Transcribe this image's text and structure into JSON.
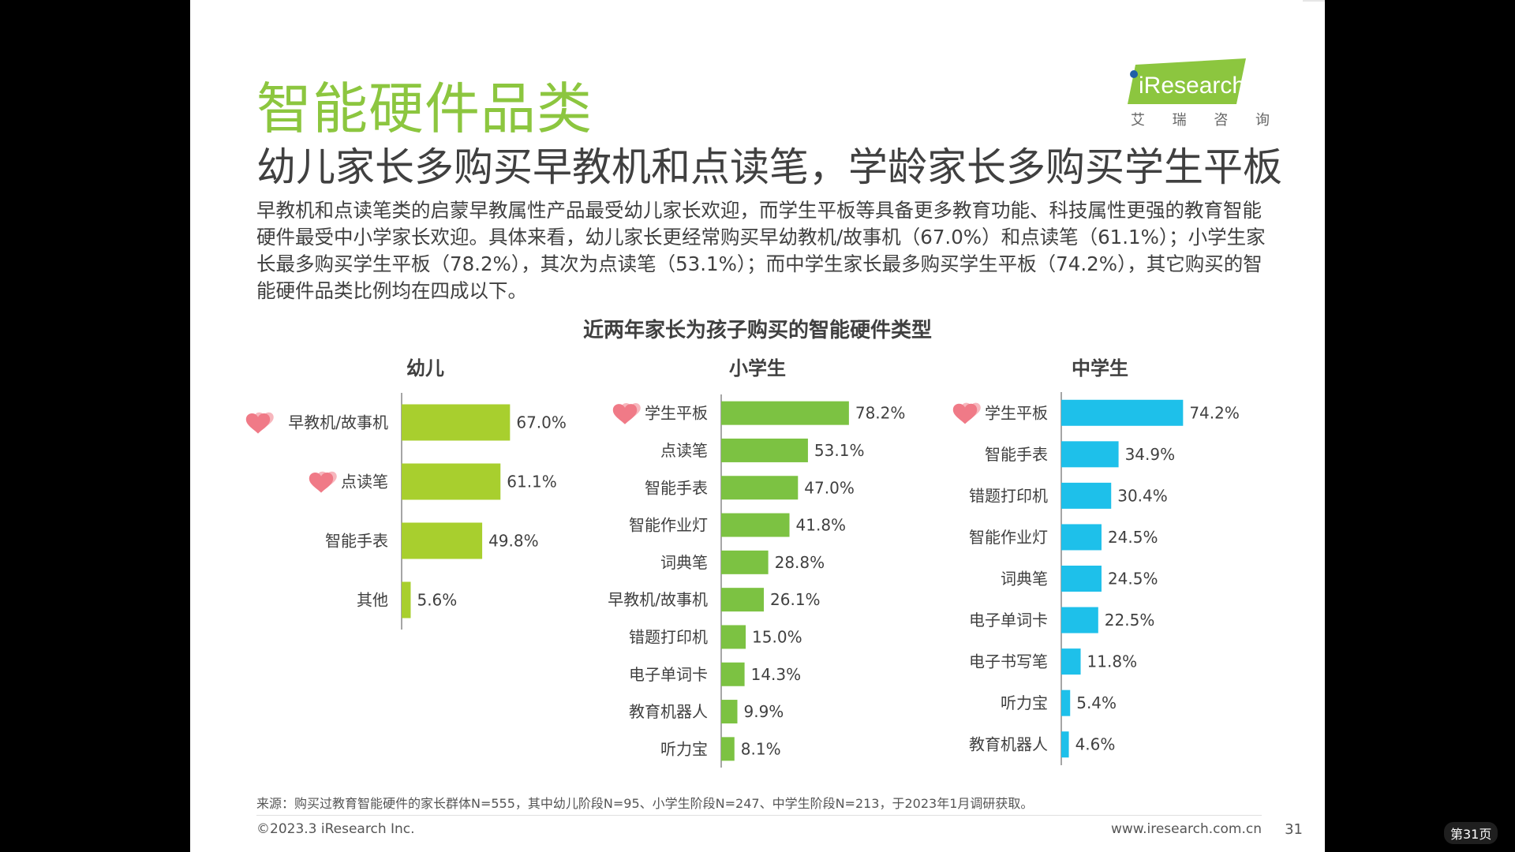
{
  "slide": {
    "title": "智能硬件品类",
    "subtitle": "幼儿家长多购买早教机和点读笔，学龄家长多购买学生平板",
    "description": "早教机和点读笔类的启蒙早教属性产品最受幼儿家长欢迎，而学生平板等具备更多教育功能、科技属性更强的教育智能硬件最受中小学家长欢迎。具体来看，幼儿家长更经常购买早幼教机/故事机（67.0%）和点读笔（61.1%）；小学生家长最多购买学生平板（78.2%），其次为点读笔（53.1%）；而中学生家长最多购买学生平板（74.2%），其它购买的智能硬件品类比例均在四成以下。",
    "logo_text": "iResearch",
    "logo_cn": [
      "艾",
      "瑞",
      "咨",
      "询"
    ],
    "source": "来源：购买过教育智能硬件的家长群体N=555，其中幼儿阶段N=95、小学生阶段N=247、中学生阶段N=213，于2023年1月调研获取。",
    "copyright": "©2023.3 iResearch Inc.",
    "url": "www.iresearch.com.cn",
    "page_number": "31",
    "viewer_page": "第31页"
  },
  "colors": {
    "title_green": "#8cc63f",
    "kindergarten_bar": "#a8cf2e",
    "primary_bar": "#7cc242",
    "middle_bar": "#1ec0ea",
    "heart": "#f07a87",
    "logo_green": "#8cc63f"
  },
  "chart_data": {
    "title": "近两年家长为孩子购买的智能硬件类型",
    "type": "bar",
    "orientation": "horizontal",
    "panels": [
      {
        "name": "幼儿",
        "categories": [
          "早教机/故事机",
          "点读笔",
          "智能手表",
          "其他"
        ],
        "values": [
          67.0,
          61.1,
          49.8,
          5.6
        ],
        "labels": [
          "67.0%",
          "61.1%",
          "49.8%",
          "5.6%"
        ],
        "highlighted": [
          true,
          true,
          false,
          false
        ]
      },
      {
        "name": "小学生",
        "categories": [
          "学生平板",
          "点读笔",
          "智能手表",
          "智能作业灯",
          "词典笔",
          "早教机/故事机",
          "错题打印机",
          "电子单词卡",
          "教育机器人",
          "听力宝"
        ],
        "values": [
          78.2,
          53.1,
          47.0,
          41.8,
          28.8,
          26.1,
          15.0,
          14.3,
          9.9,
          8.1
        ],
        "labels": [
          "78.2%",
          "53.1%",
          "47.0%",
          "41.8%",
          "28.8%",
          "26.1%",
          "15.0%",
          "14.3%",
          "9.9%",
          "8.1%"
        ],
        "highlighted": [
          true,
          false,
          false,
          false,
          false,
          false,
          false,
          false,
          false,
          false
        ]
      },
      {
        "name": "中学生",
        "categories": [
          "学生平板",
          "智能手表",
          "错题打印机",
          "智能作业灯",
          "词典笔",
          "电子单词卡",
          "电子书写笔",
          "听力宝",
          "教育机器人"
        ],
        "values": [
          74.2,
          34.9,
          30.4,
          24.5,
          24.5,
          22.5,
          11.8,
          5.4,
          4.6
        ],
        "labels": [
          "74.2%",
          "34.9%",
          "30.4%",
          "24.5%",
          "24.5%",
          "22.5%",
          "11.8%",
          "5.4%",
          "4.6%"
        ],
        "highlighted": [
          true,
          false,
          false,
          false,
          false,
          false,
          false,
          false,
          false
        ]
      }
    ]
  }
}
